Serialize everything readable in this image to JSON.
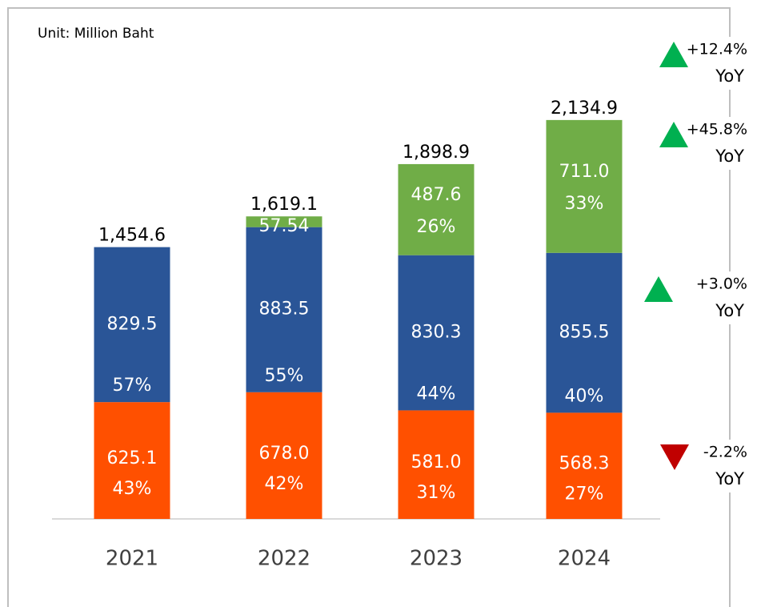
{
  "chart_data": {
    "type": "bar",
    "stacked": true,
    "unit_label": "Unit: Million Baht",
    "categories": [
      "2021",
      "2022",
      "2023",
      "2024"
    ],
    "ylim": [
      0,
      2400
    ],
    "series": [
      {
        "color": "#ff5000",
        "values": [
          625.1,
          678.0,
          581.0,
          568.3
        ],
        "value_labels": [
          "625.1",
          "678.0",
          "581.0",
          "568.3"
        ],
        "share_labels": [
          "43%",
          "42%",
          "31%",
          "27%"
        ]
      },
      {
        "color": "#2a5597",
        "values": [
          829.5,
          883.5,
          830.3,
          855.5
        ],
        "value_labels": [
          "829.5",
          "883.5",
          "830.3",
          "855.5"
        ],
        "share_labels": [
          "57%",
          "55%",
          "44%",
          "40%"
        ]
      },
      {
        "color": "#70ad47",
        "values": [
          null,
          57.54,
          487.6,
          711.0
        ],
        "value_labels": [
          null,
          "57.54",
          "487.6",
          "711.0"
        ],
        "share_labels": [
          null,
          null,
          "26%",
          "33%"
        ]
      }
    ],
    "totals": {
      "values": [
        1454.6,
        1619.1,
        1898.9,
        2134.9
      ],
      "value_labels": [
        "1,454.6",
        "1,619.1",
        "1,898.9",
        "2,134.9"
      ]
    },
    "annotations": [
      {
        "text": "+12.4%",
        "sub": "YoY",
        "direction": "up",
        "color": "#00b050"
      },
      {
        "text": "+45.8%",
        "sub": "YoY",
        "direction": "up",
        "color": "#00b050"
      },
      {
        "text": "+3.0%",
        "sub": "YoY",
        "direction": "up",
        "color": "#00b050"
      },
      {
        "text": "-2.2%",
        "sub": "YoY",
        "direction": "down",
        "color": "#c00000"
      }
    ]
  }
}
